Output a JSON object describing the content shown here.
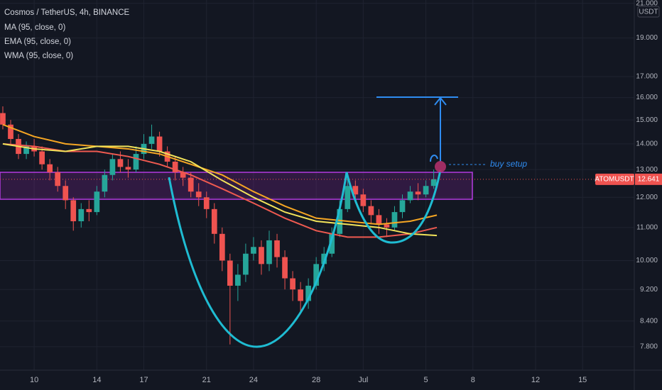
{
  "chart_data": {
    "type": "candlestick",
    "title": "Cosmos / TetherUS, 4h, BINANCE",
    "currency": "USDT",
    "symbol": "ATOMUSDT",
    "last_price": 12.641,
    "annotation": "buy setup",
    "log_scale": true,
    "grid": true,
    "up_color": "#26a69a",
    "down_color": "#ef5350",
    "xlim": [
      7.82,
      48.3
    ],
    "ylim": [
      7.29,
      21.2
    ],
    "xticks": [
      10,
      14,
      17,
      21,
      24,
      28,
      {
        "value": 31,
        "label": "Jul"
      },
      {
        "value": 35,
        "label": "5"
      },
      {
        "value": 38,
        "label": "8"
      },
      {
        "value": 42,
        "label": "12"
      },
      {
        "value": 45,
        "label": "15"
      }
    ],
    "yticks": [
      {
        "value": 7.8,
        "label": "7.800"
      },
      {
        "value": 8.4,
        "label": "8.400"
      },
      {
        "value": 9.2,
        "label": "9.200"
      },
      {
        "value": 10,
        "label": "10.000"
      },
      {
        "value": 11,
        "label": "11.000"
      },
      {
        "value": 12,
        "label": "12.000"
      },
      {
        "value": 13,
        "label": "13.000"
      },
      {
        "value": 14,
        "label": "14.000"
      },
      {
        "value": 15,
        "label": "15.000"
      },
      {
        "value": 16,
        "label": "16.000"
      },
      {
        "value": 17,
        "label": "17.000"
      },
      {
        "value": 19,
        "label": "19.000"
      },
      {
        "value": 21,
        "label": "21.000"
      }
    ],
    "x": [
      8,
      8.5,
      9,
      9.5,
      10,
      10.5,
      11,
      11.5,
      12,
      12.5,
      13,
      13.5,
      14,
      14.5,
      15,
      15.5,
      16,
      16.5,
      17,
      17.5,
      18,
      18.5,
      19,
      19.5,
      20,
      20.5,
      21,
      21.5,
      22,
      22.5,
      23,
      23.5,
      24,
      24.5,
      25,
      25.5,
      26,
      26.5,
      27,
      27.5,
      28,
      28.5,
      29,
      29.5,
      30,
      30.5,
      31,
      31.5,
      32,
      32.5,
      33,
      33.5,
      34,
      34.5,
      35,
      35.5
    ],
    "open": [
      15.3,
      14.8,
      14.2,
      13.6,
      13.9,
      13.7,
      13.2,
      12.9,
      12.4,
      11.9,
      11.2,
      11.6,
      11.5,
      12.2,
      12.8,
      13.4,
      13.1,
      13.0,
      13.6,
      14.0,
      14.3,
      13.7,
      13.3,
      12.9,
      12.7,
      12.2,
      12.0,
      11.6,
      10.8,
      10.0,
      9.3,
      9.6,
      10.2,
      10.4,
      9.9,
      10.6,
      10.1,
      9.5,
      9.2,
      8.9,
      9.3,
      9.9,
      10.2,
      10.8,
      11.6,
      12.4,
      12.1,
      11.7,
      11.4,
      11.1,
      11.0,
      11.5,
      11.9,
      12.2,
      12.1,
      12.4
    ],
    "high": [
      15.6,
      15.0,
      14.4,
      14.1,
      14.2,
      13.9,
      13.4,
      13.1,
      12.6,
      12.0,
      11.8,
      11.9,
      12.4,
      13.0,
      13.6,
      13.7,
      13.4,
      13.9,
      14.4,
      14.8,
      14.5,
      13.9,
      13.5,
      13.1,
      12.9,
      12.5,
      12.2,
      11.8,
      11.0,
      10.2,
      9.9,
      10.5,
      10.7,
      10.6,
      10.9,
      10.8,
      10.3,
      9.7,
      9.4,
      9.5,
      10.1,
      10.4,
      11.0,
      11.9,
      12.9,
      12.6,
      12.3,
      11.9,
      11.6,
      11.3,
      11.7,
      12.1,
      12.4,
      12.5,
      12.6,
      13.0
    ],
    "low": [
      14.6,
      14.0,
      13.4,
      13.4,
      13.5,
      13.0,
      12.6,
      12.2,
      11.6,
      10.9,
      11.0,
      11.2,
      11.4,
      12.0,
      12.6,
      12.9,
      12.7,
      12.9,
      13.4,
      13.8,
      13.5,
      13.1,
      12.6,
      12.4,
      12.0,
      11.7,
      11.3,
      10.5,
      9.7,
      7.85,
      8.9,
      9.4,
      10.0,
      9.6,
      9.7,
      9.8,
      9.2,
      8.9,
      8.6,
      8.7,
      9.2,
      9.7,
      10.1,
      10.7,
      11.5,
      11.8,
      11.5,
      11.1,
      10.8,
      10.7,
      10.9,
      11.3,
      11.8,
      11.9,
      12.0,
      12.3
    ],
    "close": [
      14.8,
      14.2,
      13.6,
      13.9,
      13.7,
      13.2,
      12.9,
      12.4,
      11.9,
      11.2,
      11.6,
      11.5,
      12.2,
      12.8,
      13.4,
      13.1,
      13.0,
      13.6,
      14.0,
      14.3,
      13.7,
      13.3,
      12.9,
      12.7,
      12.2,
      12.0,
      11.6,
      10.8,
      10.0,
      9.3,
      9.6,
      10.2,
      10.4,
      9.9,
      10.6,
      10.1,
      9.5,
      9.2,
      8.9,
      9.3,
      9.9,
      10.2,
      10.8,
      11.6,
      12.4,
      12.1,
      11.7,
      11.4,
      11.1,
      11.0,
      11.5,
      11.9,
      12.2,
      12.1,
      12.4,
      12.64
    ],
    "indicators": {
      "x": [
        8,
        10,
        12,
        14,
        16,
        18,
        20,
        22,
        24,
        26,
        28,
        30,
        32,
        34,
        35.7
      ],
      "series": [
        {
          "name": "MA (95, close, 0)",
          "color": "#ef5a50",
          "values": [
            14.0,
            13.9,
            13.7,
            13.7,
            13.5,
            13.2,
            12.8,
            12.3,
            11.8,
            11.3,
            10.9,
            10.7,
            10.7,
            10.8,
            11.0
          ]
        },
        {
          "name": "EMA (95, close, 0)",
          "color": "#f5a623",
          "values": [
            14.8,
            14.3,
            14.0,
            13.9,
            13.8,
            13.6,
            13.2,
            12.8,
            12.2,
            11.7,
            11.3,
            11.2,
            11.1,
            11.2,
            11.4
          ]
        },
        {
          "name": "WMA (95, close, 0)",
          "color": "#f2e35a",
          "values": [
            14.0,
            13.8,
            13.7,
            13.9,
            13.9,
            13.7,
            13.3,
            12.6,
            12.0,
            11.5,
            11.2,
            11.1,
            11.0,
            10.8,
            10.75
          ]
        }
      ]
    }
  }
}
